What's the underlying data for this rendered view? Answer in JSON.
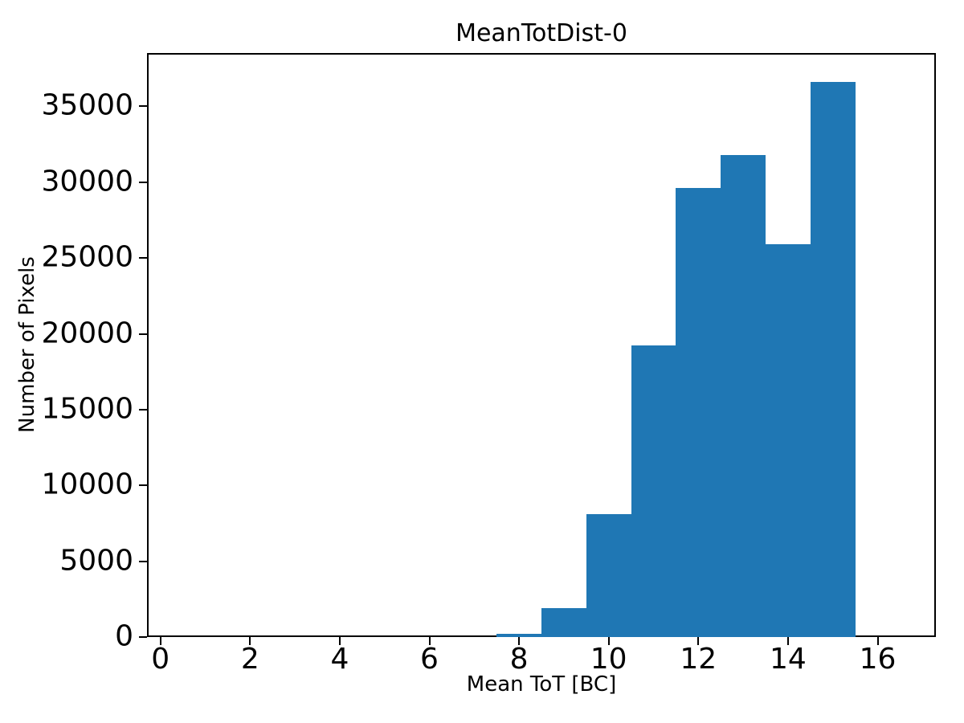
{
  "chart_data": {
    "type": "bar",
    "subtype": "histogram",
    "title": "MeanTotDist-0",
    "xlabel": "Mean ToT [BC]",
    "ylabel": "Number of Pixels",
    "bin_edges": [
      7.5,
      8.5,
      9.5,
      10.5,
      11.5,
      12.5,
      13.5,
      14.5,
      15.5
    ],
    "counts": [
      230,
      1900,
      8120,
      19250,
      29600,
      31800,
      25900,
      36600
    ],
    "bar_color": "#1f77b4",
    "xlim": [
      -0.3,
      17.3
    ],
    "ylim": [
      0,
      38520
    ],
    "x_ticks": [
      0,
      2,
      4,
      6,
      8,
      10,
      12,
      14,
      16
    ],
    "x_tick_labels": [
      "0",
      "2",
      "4",
      "6",
      "8",
      "10",
      "12",
      "14",
      "16"
    ],
    "y_ticks": [
      0,
      5000,
      10000,
      15000,
      20000,
      25000,
      30000,
      35000
    ],
    "y_tick_labels": [
      "0",
      "5000",
      "10000",
      "15000",
      "20000",
      "25000",
      "30000",
      "35000"
    ],
    "grid": false,
    "legend": null
  },
  "colors": {
    "bar": "#1f77b4",
    "text": "#000000",
    "background": "#ffffff",
    "spine": "#000000"
  }
}
